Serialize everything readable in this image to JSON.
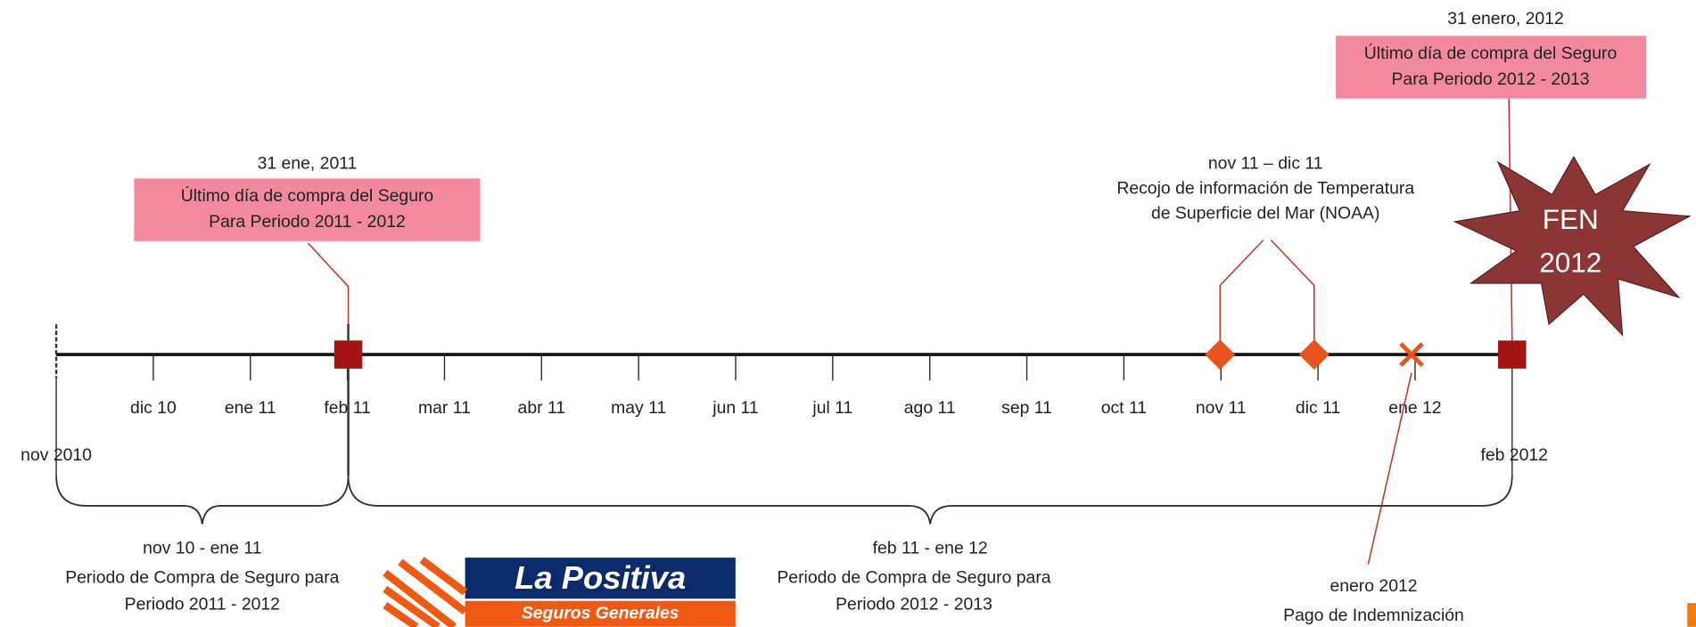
{
  "timeline": {
    "start_label": "nov 2010",
    "end_label": "feb 2012",
    "months": [
      "dic 10",
      "ene 11",
      "feb 11",
      "mar 11",
      "abr 11",
      "may 11",
      "jun 11",
      "jul 11",
      "ago 11",
      "sep 11",
      "oct 11",
      "nov 11",
      "dic 11",
      "ene 12"
    ]
  },
  "callouts": [
    {
      "date": "31 ene, 2011",
      "lines": [
        "Último día de compra del Seguro",
        "Para Periodo 2011 - 2012"
      ]
    },
    {
      "date": "31 enero, 2012",
      "lines": [
        "Último día de compra del Seguro",
        "Para Periodo 2012 - 2013"
      ]
    }
  ],
  "noaa": {
    "lines": [
      "nov 11 – dic 11",
      "Recojo de información de Temperatura",
      "de Superficie del Mar (NOAA)"
    ]
  },
  "star": {
    "lines": [
      "FEN",
      "2012"
    ]
  },
  "periods": [
    {
      "lines": [
        "nov 10 - ene 11",
        "Periodo de Compra de Seguro para",
        "Periodo 2011 - 2012"
      ]
    },
    {
      "lines": [
        "feb 11 - ene 12",
        "Periodo de Compra de Seguro para",
        "Periodo 2012 - 2013"
      ]
    }
  ],
  "payment": {
    "lines": [
      "enero 2012",
      "Pago de Indemnización"
    ]
  },
  "logo": {
    "name": "La Positiva",
    "tagline": "Seguros Generales"
  }
}
